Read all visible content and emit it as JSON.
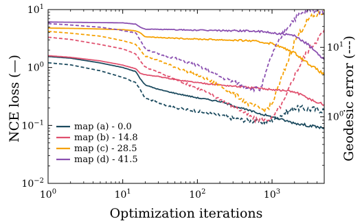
{
  "chart_data": {
    "type": "line",
    "xlabel": "Optimization iterations",
    "ylabel_left": "NCE loss (—)",
    "ylabel_right": "Geodesic error (---)",
    "x_scale": "log",
    "x_range": [
      1,
      5000
    ],
    "x_ticks": [
      {
        "value": 1,
        "base": "10",
        "exp": "0"
      },
      {
        "value": 10,
        "base": "10",
        "exp": "1"
      },
      {
        "value": 100,
        "base": "10",
        "exp": "2"
      },
      {
        "value": 1000,
        "base": "10",
        "exp": "3"
      }
    ],
    "y_left_scale": "log",
    "y_left_range": [
      0.01,
      10
    ],
    "y_left_ticks": [
      {
        "value": 0.01,
        "base": "10",
        "exp": "−2"
      },
      {
        "value": 0.1,
        "base": "10",
        "exp": "−1"
      },
      {
        "value": 1,
        "base": "10",
        "exp": "0"
      },
      {
        "value": 10,
        "base": "10",
        "exp": "1"
      }
    ],
    "y_right_scale": "log",
    "y_right_range": [
      0.11,
      35
    ],
    "y_right_ticks": [
      {
        "value": 1,
        "base": "10",
        "exp": "0"
      },
      {
        "value": 10,
        "base": "10",
        "exp": "1"
      }
    ],
    "legend_position": "lower-left",
    "series": [
      {
        "name": "map (a) - 0.0",
        "color": "#1b4a5e",
        "loss": {
          "x": [
            1,
            2,
            5,
            10,
            15,
            17,
            20,
            30,
            50,
            100,
            200,
            300,
            500,
            1000,
            2000,
            3000,
            5000
          ],
          "y": [
            1.55,
            1.45,
            1.2,
            1.0,
            0.85,
            0.65,
            0.5,
            0.42,
            0.36,
            0.3,
            0.26,
            0.22,
            0.18,
            0.14,
            0.11,
            0.1,
            0.09
          ]
        },
        "geo": {
          "x": [
            1,
            2,
            5,
            10,
            15,
            17,
            20,
            30,
            50,
            100,
            200,
            300,
            500,
            800,
            1000,
            2000,
            3000,
            5000
          ],
          "y": [
            6,
            5.6,
            4.6,
            3.7,
            3.1,
            2.5,
            1.85,
            1.6,
            1.35,
            1.2,
            1.05,
            0.95,
            0.87,
            0.84,
            0.9,
            1.35,
            1.3,
            1.25
          ]
        }
      },
      {
        "name": "map (b) - 14.8",
        "color": "#e0506e",
        "loss": {
          "x": [
            1,
            2,
            5,
            10,
            15,
            17,
            20,
            30,
            50,
            100,
            200,
            500,
            1000,
            2000,
            3000,
            4000,
            5000
          ],
          "y": [
            1.6,
            1.5,
            1.3,
            1.1,
            0.95,
            0.8,
            0.75,
            0.7,
            0.62,
            0.55,
            0.5,
            0.45,
            0.42,
            0.38,
            0.3,
            0.25,
            0.23
          ]
        },
        "geo": {
          "x": [
            1,
            2,
            5,
            10,
            15,
            17,
            20,
            30,
            50,
            100,
            200,
            400,
            600,
            800,
            1000,
            1500,
            2000,
            3000,
            5000
          ],
          "y": [
            14,
            13,
            11,
            9.5,
            8,
            6.5,
            5.2,
            4.4,
            3.5,
            2.6,
            1.8,
            1.2,
            0.9,
            0.9,
            0.95,
            1.8,
            4,
            9,
            17
          ]
        }
      },
      {
        "name": "map (c) - 28.5",
        "color": "#f5a000",
        "loss": {
          "x": [
            1,
            3,
            10,
            15,
            17,
            20,
            50,
            100,
            500,
            1000,
            2000,
            3000,
            5000
          ],
          "y": [
            4.8,
            4.7,
            4.5,
            4.3,
            4.0,
            3.4,
            3.2,
            3.1,
            2.9,
            2.6,
            1.8,
            1.2,
            0.75
          ]
        },
        "geo": {
          "x": [
            1,
            2,
            5,
            10,
            15,
            17,
            20,
            30,
            50,
            100,
            200,
            300,
            500,
            800,
            1000,
            1500,
            2000,
            3000,
            5000
          ],
          "y": [
            17,
            16,
            14.5,
            12.5,
            11,
            9.5,
            7.5,
            6.5,
            5.2,
            4,
            2.8,
            2.2,
            1.5,
            1.25,
            1.5,
            5,
            12,
            25,
            33
          ]
        }
      },
      {
        "name": "map (d) - 41.5",
        "color": "#8a4fb0",
        "loss": {
          "x": [
            1,
            3,
            10,
            15,
            17,
            20,
            50,
            100,
            500,
            1000,
            2000,
            3000,
            5000
          ],
          "y": [
            6.1,
            6.0,
            5.9,
            5.6,
            5.0,
            4.6,
            4.5,
            4.4,
            4.3,
            4.0,
            3.5,
            2.5,
            1.4
          ]
        },
        "geo": {
          "x": [
            1,
            2,
            5,
            10,
            15,
            17,
            20,
            30,
            50,
            100,
            200,
            300,
            500,
            700,
            800,
            1000,
            1500,
            2000,
            3000,
            5000
          ],
          "y": [
            22,
            21,
            19.5,
            17.5,
            16,
            13,
            9.5,
            8,
            7,
            5.5,
            3.8,
            3.2,
            2.6,
            2.5,
            3.8,
            8,
            18,
            26,
            34,
            34
          ]
        }
      }
    ]
  }
}
